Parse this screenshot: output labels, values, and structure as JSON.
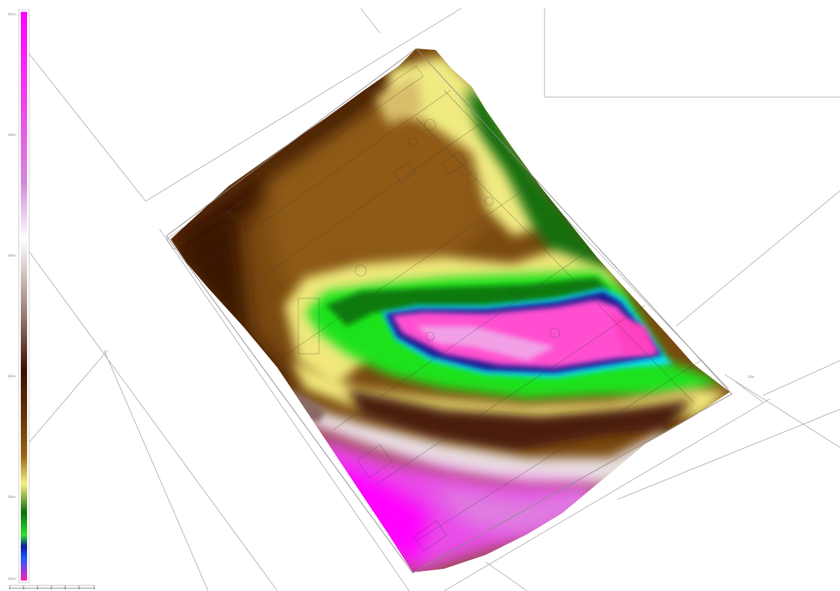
{
  "legend": {
    "tick_labels": [
      "201m",
      "200m",
      "200m",
      "200m",
      "200m",
      "200m"
    ],
    "colors": [
      "#ff1fb6",
      "#1a5aff",
      "#0a1a9e",
      "#2ee32e",
      "#0a6e0a",
      "#f7f07c",
      "#8a5a12",
      "#4a1b06",
      "#ffffff",
      "#d28ad8",
      "#ff00ff"
    ]
  },
  "scalebar": {
    "ticks": 6
  },
  "map": {
    "palette": {
      "magenta": "#f03cf0",
      "pink": "#ff3fbf",
      "blue": "#161696",
      "cyan": "#10e0f0",
      "green": "#1ee61e",
      "dark_green": "#157a15",
      "yellow": "#f3ee7c",
      "tan": "#c9a35a",
      "brown": "#8a5010",
      "dark_brown": "#4a1b08",
      "white": "#ffffff"
    },
    "labels": [
      "17m"
    ]
  }
}
